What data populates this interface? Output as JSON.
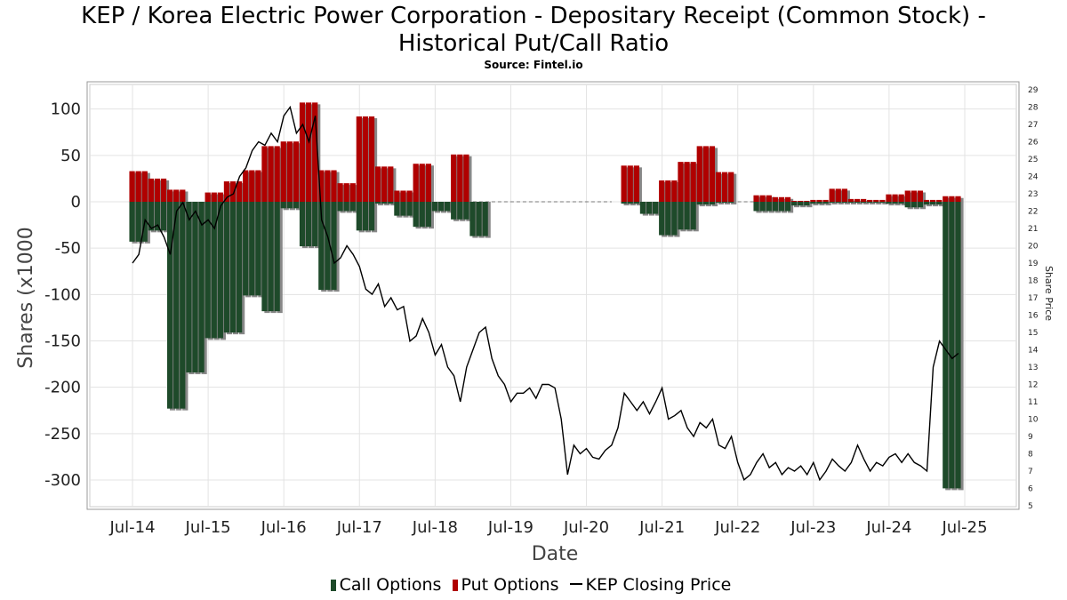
{
  "title_line1": "KEP / Korea Electric Power Corporation - Depositary Receipt (Common Stock) -",
  "title_line2": "Historical Put/Call Ratio",
  "subtitle": "Source: Fintel.io",
  "chart_data": {
    "type": "bar",
    "xlabel": "Date",
    "ylabel": "Shares (x1000",
    "y2label": "Share Price",
    "ylim": [
      -320,
      128
    ],
    "y2lim": [
      4.5,
      29.5
    ],
    "grid": true,
    "legend_position": "bottom",
    "x_tick_labels": [
      "Jul-14",
      "Jul-15",
      "Jul-16",
      "Jul-17",
      "Jul-18",
      "Jul-19",
      "Jul-20",
      "Jul-21",
      "Jul-22",
      "Jul-23",
      "Jul-24",
      "Jul-25"
    ],
    "y_ticks": [
      100,
      50,
      0,
      -50,
      -100,
      -150,
      -200,
      -250,
      -300
    ],
    "y2_ticks": [
      29,
      28,
      27,
      26,
      25,
      24,
      23,
      22,
      21,
      20,
      19,
      18,
      17,
      16,
      15,
      14,
      13,
      12,
      11,
      10,
      9,
      8,
      7,
      6,
      5
    ],
    "legend": [
      "Call Options",
      "Put Options",
      "KEP Closing Price"
    ],
    "colors": {
      "call": "#1e4a2a",
      "put": "#b00000",
      "price": "#000000"
    },
    "months": [
      "2014-07",
      "2014-08",
      "2014-09",
      "2014-10",
      "2014-11",
      "2014-12",
      "2015-01",
      "2015-02",
      "2015-03",
      "2015-04",
      "2015-05",
      "2015-06",
      "2015-07",
      "2015-08",
      "2015-09",
      "2015-10",
      "2015-11",
      "2015-12",
      "2016-01",
      "2016-02",
      "2016-03",
      "2016-04",
      "2016-05",
      "2016-06",
      "2016-07",
      "2016-08",
      "2016-09",
      "2016-10",
      "2016-11",
      "2016-12",
      "2017-01",
      "2017-02",
      "2017-03",
      "2017-04",
      "2017-05",
      "2017-06",
      "2017-07",
      "2017-08",
      "2017-09",
      "2017-10",
      "2017-11",
      "2017-12",
      "2018-01",
      "2018-02",
      "2018-03",
      "2018-04",
      "2018-05",
      "2018-06",
      "2018-07",
      "2018-08",
      "2018-09",
      "2018-10",
      "2018-11",
      "2018-12",
      "2019-01",
      "2019-02",
      "2019-03",
      "2019-04",
      "2019-05",
      "2019-06",
      "2019-07",
      "2019-08",
      "2019-09",
      "2019-10",
      "2019-11",
      "2019-12",
      "2020-01",
      "2020-02",
      "2020-03",
      "2020-04",
      "2020-05",
      "2020-06",
      "2020-07",
      "2020-08",
      "2020-09",
      "2020-10",
      "2020-11",
      "2020-12",
      "2021-01",
      "2021-02",
      "2021-03",
      "2021-04",
      "2021-05",
      "2021-06",
      "2021-07",
      "2021-08",
      "2021-09",
      "2021-10",
      "2021-11",
      "2021-12",
      "2022-01",
      "2022-02",
      "2022-03",
      "2022-04",
      "2022-05",
      "2022-06",
      "2022-07",
      "2022-08",
      "2022-09",
      "2022-10",
      "2022-11",
      "2022-12",
      "2023-01",
      "2023-02",
      "2023-03",
      "2023-04",
      "2023-05",
      "2023-06",
      "2023-07",
      "2023-08",
      "2023-09",
      "2023-10",
      "2023-11",
      "2023-12",
      "2024-01",
      "2024-02",
      "2024-03",
      "2024-04",
      "2024-05",
      "2024-06",
      "2024-07",
      "2024-08",
      "2024-09",
      "2024-10",
      "2024-11",
      "2024-12",
      "2025-01",
      "2025-02",
      "2025-03",
      "2025-04",
      "2025-05",
      "2025-06",
      "2025-07",
      "2025-08",
      "2025-09",
      "2025-10"
    ],
    "series": [
      {
        "name": "Put Options",
        "values": [
          33,
          33,
          33,
          25,
          25,
          25,
          13,
          13,
          13,
          0,
          0,
          0,
          10,
          10,
          10,
          22,
          22,
          22,
          34,
          34,
          34,
          60,
          60,
          60,
          65,
          65,
          65,
          107,
          107,
          107,
          34,
          34,
          34,
          20,
          20,
          20,
          92,
          92,
          92,
          38,
          38,
          38,
          12,
          12,
          12,
          41,
          41,
          41,
          0,
          0,
          0,
          51,
          51,
          51,
          0,
          0,
          0,
          0,
          0,
          0,
          0,
          0,
          0,
          0,
          0,
          0,
          0,
          0,
          0,
          0,
          0,
          0,
          0,
          0,
          0,
          0,
          0,
          0,
          39,
          39,
          39,
          0,
          0,
          0,
          23,
          23,
          23,
          43,
          43,
          43,
          60,
          60,
          60,
          32,
          32,
          32,
          0,
          0,
          0,
          7,
          7,
          7,
          5,
          5,
          5,
          1,
          1,
          1,
          2,
          2,
          2,
          14,
          14,
          14,
          3,
          3,
          3,
          2,
          2,
          2,
          8,
          8,
          8,
          12,
          12,
          12,
          2,
          2,
          2,
          6,
          6,
          6
        ]
      },
      {
        "name": "Call Options",
        "values": [
          -43,
          -43,
          -43,
          -31,
          -31,
          -31,
          -223,
          -223,
          -223,
          -184,
          -184,
          -184,
          -147,
          -147,
          -147,
          -141,
          -141,
          -141,
          -101,
          -101,
          -101,
          -118,
          -118,
          -118,
          -7,
          -7,
          -7,
          -48,
          -48,
          -48,
          -95,
          -95,
          -95,
          -10,
          -10,
          -10,
          -31,
          -31,
          -31,
          -2,
          -2,
          -2,
          -15,
          -15,
          -15,
          -27,
          -27,
          -27,
          -10,
          -10,
          -10,
          -19,
          -19,
          -19,
          -37,
          -37,
          -37,
          0,
          0,
          0,
          0,
          0,
          0,
          0,
          0,
          0,
          0,
          0,
          0,
          0,
          0,
          0,
          0,
          0,
          0,
          0,
          0,
          0,
          -2,
          -2,
          -2,
          -13,
          -13,
          -13,
          -36,
          -36,
          -36,
          -30,
          -30,
          -30,
          -3,
          -3,
          -3,
          -1,
          -1,
          -1,
          0,
          0,
          0,
          -10,
          -10,
          -10,
          -10,
          -10,
          -10,
          -4,
          -4,
          -4,
          -2,
          -2,
          -2,
          -1,
          -1,
          -1,
          -1,
          -1,
          -1,
          -1,
          -1,
          -1,
          -2,
          -2,
          -2,
          -6,
          -6,
          -6,
          -3,
          -3,
          -3,
          -309,
          -309,
          -309
        ]
      },
      {
        "name": "KEP Closing Price",
        "values": [
          19.0,
          19.5,
          21.5,
          21.0,
          21.2,
          20.5,
          19.5,
          22.0,
          22.5,
          21.5,
          22.0,
          21.2,
          21.5,
          21.0,
          22.3,
          22.8,
          23.0,
          24.0,
          24.5,
          25.5,
          26.0,
          25.8,
          26.5,
          26.0,
          27.5,
          28.0,
          26.5,
          27.0,
          26.0,
          27.5,
          21.5,
          20.5,
          19.0,
          19.3,
          20.0,
          19.5,
          18.8,
          17.5,
          17.2,
          17.8,
          16.5,
          17.0,
          16.3,
          16.5,
          14.5,
          14.8,
          15.8,
          15.0,
          13.7,
          14.3,
          13.0,
          12.5,
          11.0,
          13.0,
          14.0,
          15.0,
          15.3,
          13.5,
          12.5,
          12.0,
          11.0,
          11.5,
          11.5,
          11.8,
          11.2,
          12.0,
          12.0,
          11.8,
          10.0,
          6.8,
          8.5,
          8.0,
          8.3,
          7.8,
          7.7,
          8.2,
          8.5,
          9.5,
          11.5,
          11.0,
          10.5,
          11.0,
          10.3,
          11.0,
          11.8,
          10.0,
          10.2,
          10.5,
          9.5,
          9.0,
          9.8,
          9.5,
          10.0,
          8.5,
          8.3,
          9.0,
          7.5,
          6.5,
          6.8,
          7.5,
          8.0,
          7.2,
          7.5,
          6.8,
          7.2,
          7.0,
          7.3,
          6.8,
          7.5,
          6.5,
          7.0,
          7.7,
          7.3,
          7.0,
          7.5,
          8.5,
          7.7,
          7.0,
          7.5,
          7.3,
          7.8,
          8.0,
          7.5,
          8.0,
          7.5,
          7.3,
          7.0,
          13.0,
          14.5,
          14.0,
          13.5,
          13.8
        ]
      }
    ]
  },
  "legend_labels": {
    "call": "Call Options",
    "put": "Put Options",
    "price": "KEP Closing Price"
  }
}
